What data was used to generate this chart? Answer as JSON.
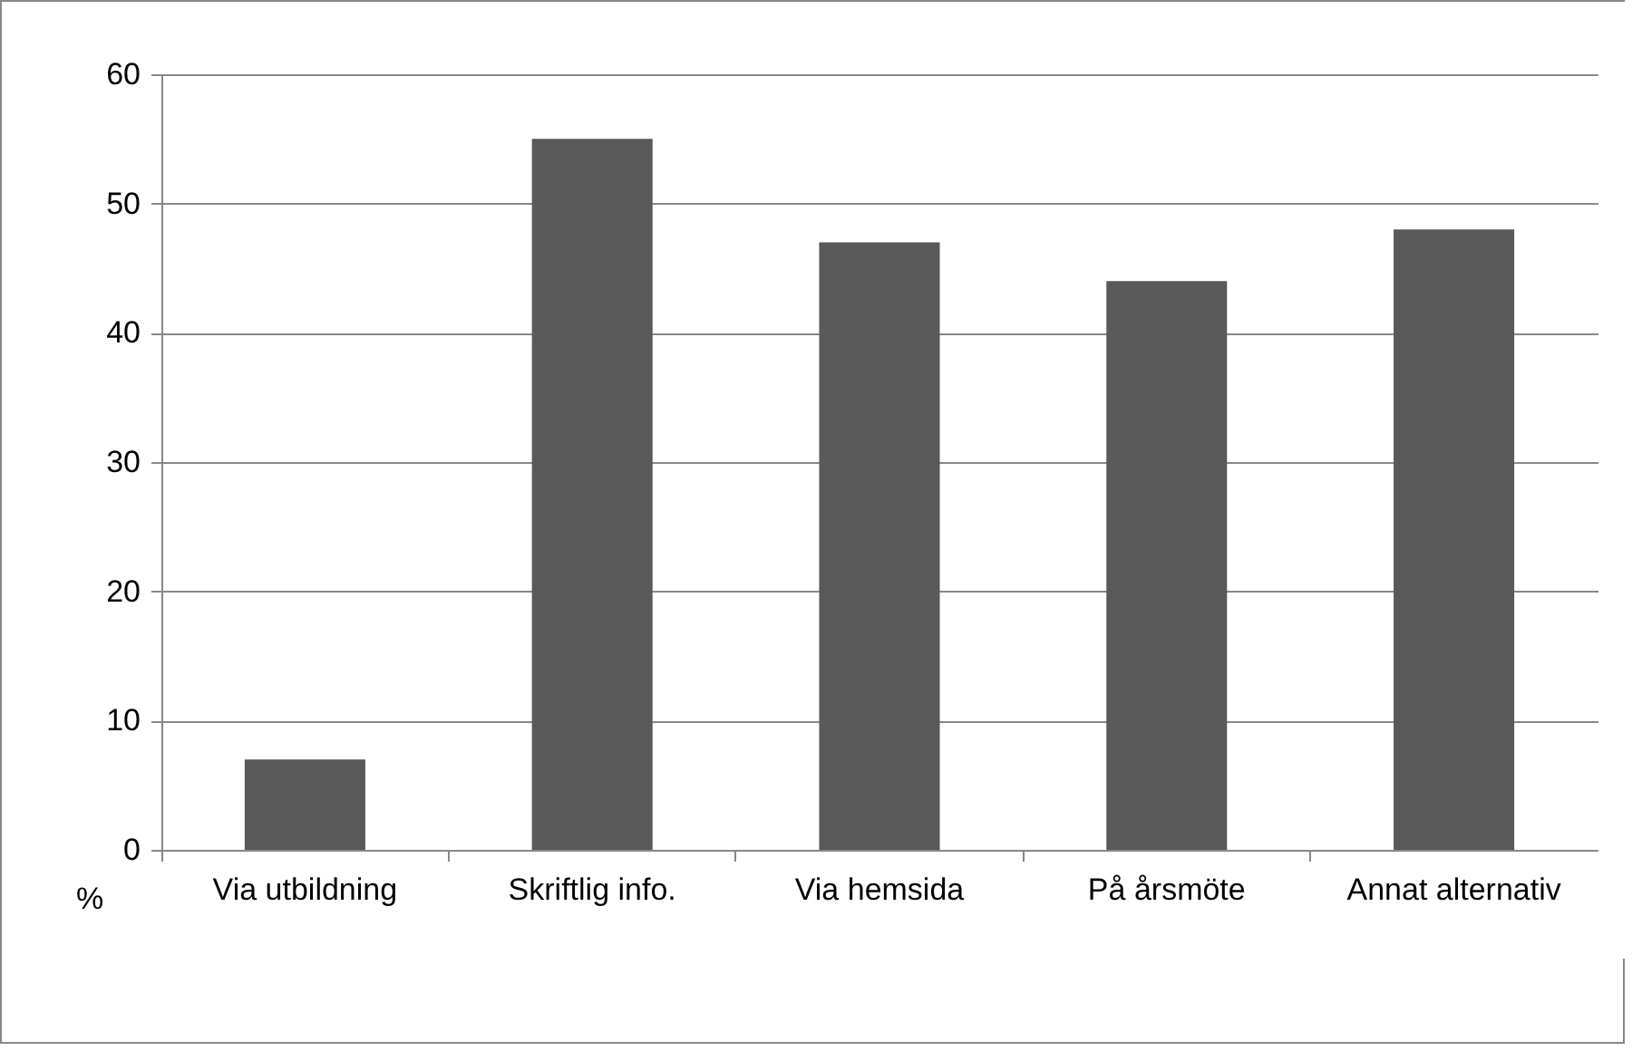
{
  "chart_data": {
    "type": "bar",
    "ylabel": "%",
    "categories": [
      "Via utbildning",
      "Skriftlig info.",
      "Via hemsida",
      "På årsmöte",
      "Annat alternativ"
    ],
    "values": [
      7,
      55,
      47,
      44,
      48
    ],
    "color": "#595959",
    "ylim": [
      0,
      60
    ],
    "yticks": [
      0,
      10,
      20,
      30,
      40,
      50,
      60
    ],
    "grid": "y"
  }
}
